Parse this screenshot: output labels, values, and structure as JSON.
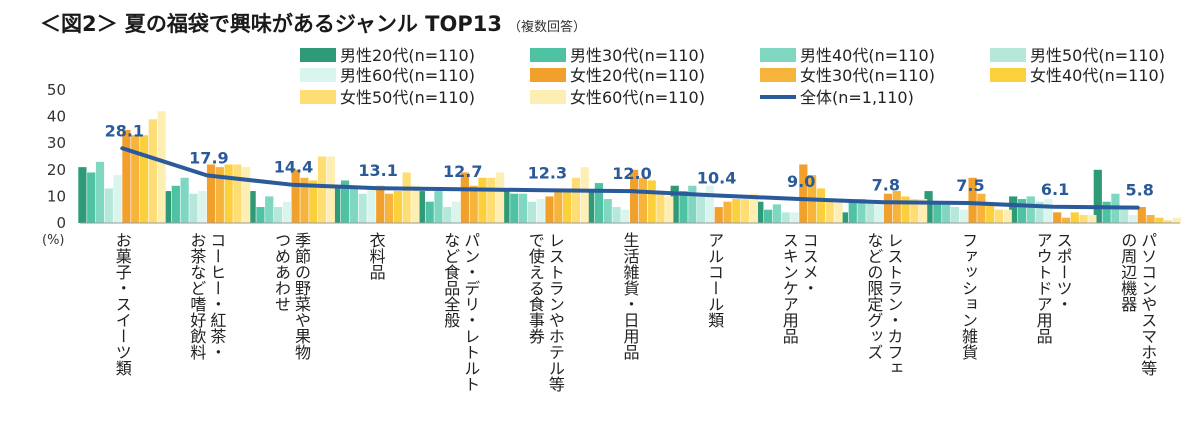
{
  "chart_data": {
    "type": "bar",
    "title": "＜図2＞ 夏の福袋で興味があるジャンル TOP13",
    "subtitle": "（複数回答）",
    "y_unit_label": "(%)",
    "ylim": [
      0,
      50
    ],
    "yticks": [
      0,
      10,
      20,
      30,
      40,
      50
    ],
    "grid": false,
    "legend_position": "top",
    "categories": [
      "お菓子・スイーツ類",
      "コーヒー・紅茶・お茶など嗜好飲料",
      "季節の野菜や果物つめあわせ",
      "衣料品",
      "パン・デリ・レトルトなど食品全般",
      "レストランやホテル等で使える食事券",
      "生活雑貨・日用品",
      "アルコール類",
      "コスメ・スキンケア用品",
      "レストラン・カフェなどの限定グッズ",
      "ファッション雑貨",
      "スポーツ・アウトドア用品",
      "パソコンやスマホ等の周辺機器"
    ],
    "category_label_lines": [
      [
        "お菓子・スイーツ類"
      ],
      [
        "コーヒー・紅茶・",
        "お茶など嗜好飲料"
      ],
      [
        "季節の野菜や果物",
        "つめあわせ"
      ],
      [
        "衣料品"
      ],
      [
        "パン・デリ・レトルト",
        "など食品全般"
      ],
      [
        "レストランやホテル等",
        "で使える食事券"
      ],
      [
        "生活雑貨・日用品"
      ],
      [
        "アルコール類"
      ],
      [
        "コスメ・",
        "スキンケア用品"
      ],
      [
        "レストラン・カフェ",
        "などの限定グッズ"
      ],
      [
        "ファッション雑貨"
      ],
      [
        "スポーツ・",
        "アウトドア用品"
      ],
      [
        "パソコンやスマホ等",
        "の周辺機器"
      ]
    ],
    "series": [
      {
        "name": "男性20代(n=110)",
        "color": "#2e9a78",
        "values": [
          21,
          12,
          12,
          14,
          12,
          12,
          12,
          14,
          8,
          4,
          12,
          10,
          20
        ]
      },
      {
        "name": "男性30代(n=110)",
        "color": "#4ec2a2",
        "values": [
          19,
          14,
          6,
          16,
          8,
          11,
          15,
          12,
          5,
          8,
          7,
          9,
          8
        ]
      },
      {
        "name": "男性40代(n=110)",
        "color": "#7fd6c1",
        "values": [
          23,
          17,
          10,
          13,
          12,
          11,
          9,
          14,
          7,
          9,
          7,
          10,
          11
        ]
      },
      {
        "name": "男性50代(n=110)",
        "color": "#b5e8da",
        "values": [
          13,
          11,
          6,
          11,
          6,
          8,
          6,
          11,
          4,
          8,
          6,
          8,
          6
        ]
      },
      {
        "name": "男性60代(n=110)",
        "color": "#daf4ee",
        "values": [
          18,
          12,
          8,
          13,
          8,
          9,
          5,
          14,
          4,
          7,
          5,
          9,
          3
        ]
      },
      {
        "name": "女性20代(n=110)",
        "color": "#f2a02c",
        "values": [
          35,
          22,
          20,
          14,
          19,
          10,
          20,
          6,
          22,
          11,
          17,
          4,
          6
        ]
      },
      {
        "name": "女性30代(n=110)",
        "color": "#f6b43c",
        "values": [
          33,
          21,
          17,
          11,
          14,
          12,
          17,
          8,
          18,
          12,
          11,
          2,
          3
        ]
      },
      {
        "name": "女性40代(n=110)",
        "color": "#fccf3c",
        "values": [
          33,
          22,
          16,
          12,
          17,
          12,
          16,
          9,
          13,
          10,
          7,
          4,
          2
        ]
      },
      {
        "name": "女性50代(n=110)",
        "color": "#fddd74",
        "values": [
          39,
          22,
          25,
          19,
          17,
          17,
          11,
          9,
          9,
          9,
          5,
          3,
          1
        ]
      },
      {
        "name": "女性60代(n=110)",
        "color": "#fdeeb4",
        "values": [
          42,
          21,
          25,
          14,
          19,
          21,
          10,
          11,
          8,
          9,
          5,
          3,
          2
        ]
      }
    ],
    "total_series": {
      "name": "全体(n=1,110)",
      "color": "#2a5a9a",
      "values": [
        28.1,
        17.9,
        14.4,
        13.1,
        12.7,
        12.3,
        12.0,
        10.4,
        9.0,
        7.8,
        7.5,
        6.1,
        5.8
      ],
      "labels": [
        "28.1",
        "17.9",
        "14.4",
        "13.1",
        "12.7",
        "12.3",
        "12.0",
        "10.4",
        "9.0",
        "7.8",
        "7.5",
        "6.1",
        "5.8"
      ]
    }
  }
}
